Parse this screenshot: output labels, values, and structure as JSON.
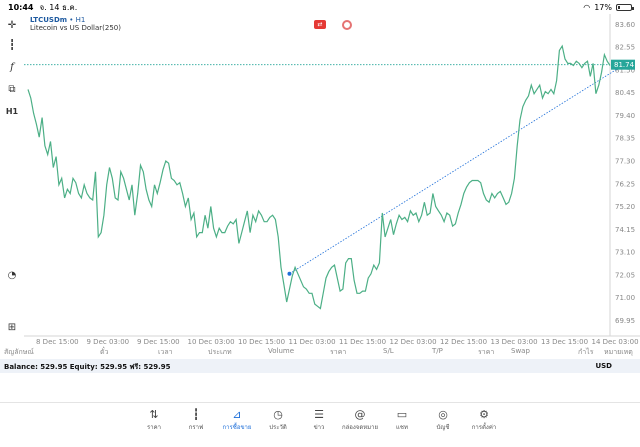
{
  "status": {
    "time": "10:44",
    "date": "จ. 14 ธ.ค.",
    "battery": "17%",
    "battery_level": 0.17
  },
  "chart": {
    "symbol": "LTCUSDm",
    "timeframe": "H1",
    "description": "Litecoin vs US Dollar(250)",
    "current_price": "81.74",
    "colors": {
      "line": "#4caf86",
      "accent": "#1e6fd9",
      "price_tag": "#26a69a",
      "sell_marker": "#e53935"
    }
  },
  "chart_data": {
    "type": "line",
    "series": [
      {
        "values": [
          80.6,
          80.2,
          79.5,
          79.0,
          78.4,
          79.3,
          78.0,
          77.6,
          78.2,
          77.0,
          77.5,
          76.2,
          76.5,
          75.6,
          76.0,
          75.8,
          76.5,
          76.3,
          75.8,
          75.6,
          76.2,
          75.8,
          75.6,
          75.5,
          76.8,
          73.8,
          74.0,
          74.8,
          76.2,
          77.0,
          76.5,
          75.6,
          75.5,
          76.8,
          76.5,
          76.0,
          75.5,
          76.2,
          74.8,
          75.8,
          77.1,
          76.8,
          76.0,
          75.5,
          75.2,
          76.2,
          75.8,
          76.3,
          76.9,
          77.3,
          77.2,
          76.5,
          76.4,
          76.2,
          76.3,
          75.8,
          75.2,
          75.6,
          74.6,
          74.9,
          73.8,
          74.0,
          74.0,
          74.8,
          74.2,
          75.2,
          74.2,
          73.8,
          74.2,
          74.0,
          74.0,
          74.3,
          74.5,
          74.4,
          74.6,
          73.5,
          74.0,
          74.5,
          75.0,
          74.0,
          74.8,
          74.5,
          75.0,
          74.8,
          74.5,
          74.5,
          74.7,
          74.8,
          74.6,
          73.8,
          72.4,
          71.6,
          70.8,
          71.4,
          72.0,
          72.4,
          72.1,
          71.8,
          71.5,
          71.4,
          71.2,
          71.2,
          70.7,
          70.6,
          70.5,
          71.2,
          71.9,
          72.2,
          72.4,
          72.5,
          71.9,
          71.3,
          71.4,
          72.6,
          72.8,
          72.8,
          71.8,
          71.2,
          71.2,
          71.3,
          71.3,
          71.9,
          72.1,
          72.5,
          72.3,
          72.6,
          74.9,
          73.8,
          74.2,
          74.6,
          73.9,
          74.4,
          74.8,
          74.6,
          74.7,
          74.5,
          75.0,
          74.8,
          74.9,
          74.5,
          74.8,
          75.4,
          74.8,
          74.9,
          75.8,
          75.2,
          75.0,
          74.8,
          74.5,
          74.9,
          74.8,
          74.3,
          74.4,
          74.9,
          75.3,
          75.8,
          76.1,
          76.3,
          76.4,
          76.4,
          76.4,
          76.3,
          75.8,
          75.5,
          75.4,
          75.8,
          75.6,
          75.8,
          75.9,
          75.6,
          75.3,
          75.4,
          75.8,
          76.5,
          78.0,
          79.2,
          79.8,
          80.1,
          80.3,
          80.8,
          80.4,
          80.6,
          80.8,
          80.2,
          80.5,
          80.4,
          80.6,
          80.4,
          81.0,
          82.4,
          82.6,
          82.0,
          81.8,
          81.8,
          81.7,
          81.9,
          81.8,
          81.6,
          81.8,
          81.9,
          81.2,
          81.8,
          80.4,
          80.8,
          81.4,
          82.2,
          81.9,
          81.7
        ]
      }
    ],
    "x_ticks": [
      "8 Dec 15:00",
      "9 Dec 03:00",
      "9 Dec 15:00",
      "10 Dec 03:00",
      "10 Dec 15:00",
      "11 Dec 03:00",
      "11 Dec 15:00",
      "12 Dec 03:00",
      "12 Dec 15:00",
      "13 Dec 03:00",
      "13 Dec 15:00",
      "14 Dec 03:00"
    ],
    "y_ticks": [
      "83.60",
      "82.55",
      "81.50",
      "80.45",
      "79.40",
      "78.35",
      "77.30",
      "76.25",
      "75.20",
      "74.15",
      "73.10",
      "72.05",
      "71.00",
      "69.95"
    ],
    "ylim": [
      69.6,
      83.8
    ],
    "current_price": 81.74,
    "trend_line": {
      "from": {
        "index": 93,
        "value": 72.1
      },
      "to": {
        "index": 212,
        "value": 81.74
      }
    },
    "grid": false
  },
  "table_headers": [
    "สัญลักษณ์",
    "ตั๋ว",
    "เวลา",
    "ประเภท",
    "Volume",
    "ราคา",
    "S/L",
    "T/P",
    "ราคา",
    "Swap",
    "กำไร",
    "หมายเหตุ"
  ],
  "balance": {
    "left": "Balance: 529.95  Equity: 529.95  ฟรี: 529.95",
    "currency": "USD"
  },
  "tabs": [
    {
      "label": "ราคา",
      "icon": "quotes-icon",
      "glyph": "⇅"
    },
    {
      "label": "กราฟ",
      "icon": "candles-icon",
      "glyph": "┇"
    },
    {
      "label": "การซื้อขาย",
      "icon": "trade-chart-icon",
      "glyph": "⟋"
    },
    {
      "label": "ประวัติ",
      "icon": "history-icon",
      "glyph": "◷"
    },
    {
      "label": "ข่าว",
      "icon": "news-icon",
      "glyph": "☰"
    },
    {
      "label": "กล่องจดหมาย",
      "icon": "mailbox-icon",
      "glyph": "@"
    },
    {
      "label": "แชท",
      "icon": "chat-icon",
      "glyph": "▭"
    },
    {
      "label": "บัญชี",
      "icon": "account-icon",
      "glyph": "◎"
    },
    {
      "label": "การตั้งค่า",
      "icon": "settings-icon",
      "glyph": "⚙"
    }
  ],
  "tools": [
    {
      "name": "crosshair-icon",
      "glyph": "+"
    },
    {
      "name": "indicators-icon",
      "glyph": "┇"
    },
    {
      "name": "function-icon",
      "glyph": "f"
    },
    {
      "name": "objects-icon",
      "glyph": "⧉"
    },
    {
      "name": "period-button",
      "glyph": "H1"
    },
    {
      "name": "zoom-icon",
      "glyph": "◔"
    },
    {
      "name": "add-icon",
      "glyph": "+"
    }
  ]
}
